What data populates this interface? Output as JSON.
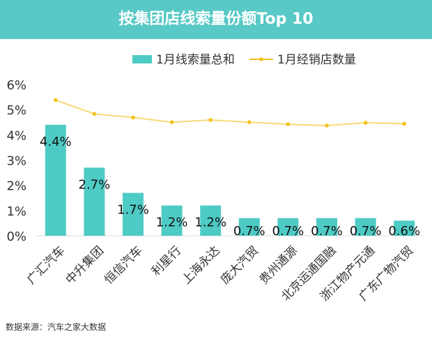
{
  "chart_data": {
    "type": "bar",
    "title": "按集团店线索量份额Top 10",
    "categories": [
      "广汇汽车",
      "中升集团",
      "恒信汽车",
      "利星行",
      "上海永达",
      "庞大汽贸",
      "贵州通源",
      "北京运通国融",
      "浙江物产元通",
      "广东广物汽贸"
    ],
    "series": [
      {
        "name": "1月线索量总和",
        "kind": "bar",
        "color": "#4ecbc5",
        "values": [
          4.4,
          2.7,
          1.7,
          1.2,
          1.2,
          0.7,
          0.7,
          0.7,
          0.7,
          0.6
        ],
        "labels": [
          "4.4%",
          "2.7%",
          "1.7%",
          "1.2%",
          "1.2%",
          "0.7%",
          "0.7%",
          "0.7%",
          "0.7%",
          "0.6%"
        ]
      },
      {
        "name": "1月经销店数量",
        "kind": "line",
        "color": "#f3c21b",
        "values": [
          5.38,
          4.83,
          4.69,
          4.5,
          4.59,
          4.5,
          4.42,
          4.37,
          4.48,
          4.44
        ]
      }
    ],
    "yticks": [
      "0%",
      "1%",
      "2%",
      "3%",
      "4%",
      "5%",
      "6%"
    ],
    "ylim": [
      0,
      6
    ],
    "grid": false,
    "legend": "top"
  },
  "source": "数据来源：汽车之家大数据"
}
